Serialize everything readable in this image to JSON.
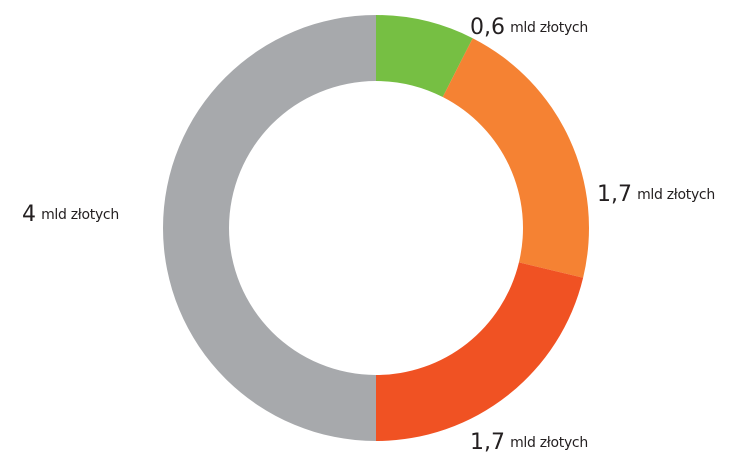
{
  "chart_data": {
    "type": "donut",
    "values": [
      0.6,
      1.7,
      1.7,
      4
    ],
    "value_labels": [
      "0,6",
      "1,7",
      "1,7",
      "4"
    ],
    "unit": "mld złotych",
    "colors": [
      "#76bf43",
      "#f58233",
      "#f05223",
      "#a7a9ac"
    ]
  }
}
